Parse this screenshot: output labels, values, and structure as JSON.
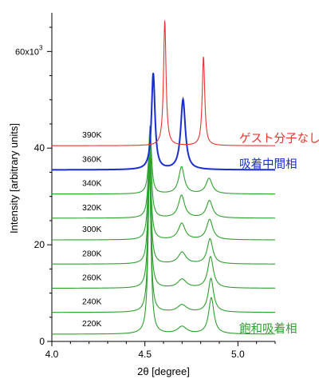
{
  "chart_data": {
    "type": "line",
    "xlabel": "2θ [degree]",
    "ylabel": "Intensity [arbitrary units]",
    "xlim": [
      4.0,
      5.2
    ],
    "ylim": [
      0,
      68000
    ],
    "x_ticks": [
      {
        "value": 4.0,
        "label": "4.0"
      },
      {
        "value": 4.5,
        "label": "4.5"
      },
      {
        "value": 5.0,
        "label": "5.0"
      }
    ],
    "y_ticks": [
      {
        "value": 0,
        "label": "0"
      },
      {
        "value": 20000,
        "label": "20"
      },
      {
        "value": 40000,
        "label": "40"
      }
    ],
    "y_top_tick": {
      "value": 60000,
      "label_base": "60x10",
      "label_exp": "3"
    },
    "grid": false,
    "colors": {
      "green": "#2ca02c",
      "blue": "#1a2fd0",
      "red": "#e8332c"
    },
    "series": [
      {
        "name": "220K",
        "color": "#2ca02c",
        "baseline": 1500,
        "peaks": [
          [
            4.525,
            35000,
            0.009
          ],
          [
            4.7,
            1500,
            0.03
          ],
          [
            4.857,
            7500,
            0.017
          ]
        ]
      },
      {
        "name": "240K",
        "color": "#2ca02c",
        "baseline": 6000,
        "peaks": [
          [
            4.525,
            30000,
            0.009
          ],
          [
            4.7,
            1500,
            0.03
          ],
          [
            4.855,
            7000,
            0.017
          ]
        ]
      },
      {
        "name": "260K",
        "color": "#2ca02c",
        "baseline": 11000,
        "peaks": [
          [
            4.525,
            27000,
            0.009
          ],
          [
            4.7,
            1800,
            0.028
          ],
          [
            4.853,
            6500,
            0.018
          ]
        ]
      },
      {
        "name": "280K",
        "color": "#2ca02c",
        "baseline": 16000,
        "peaks": [
          [
            4.525,
            23000,
            0.009
          ],
          [
            4.7,
            2400,
            0.025
          ],
          [
            4.85,
            5200,
            0.018
          ]
        ]
      },
      {
        "name": "300K",
        "color": "#2ca02c",
        "baseline": 21000,
        "peaks": [
          [
            4.525,
            20000,
            0.009
          ],
          [
            4.698,
            3400,
            0.022
          ],
          [
            4.848,
            4200,
            0.02
          ]
        ]
      },
      {
        "name": "320K",
        "color": "#2ca02c",
        "baseline": 25500,
        "peaks": [
          [
            4.527,
            18000,
            0.009
          ],
          [
            4.697,
            4700,
            0.02
          ],
          [
            4.847,
            3600,
            0.02
          ]
        ]
      },
      {
        "name": "340K",
        "color": "#2ca02c",
        "baseline": 30500,
        "peaks": [
          [
            4.528,
            14000,
            0.009
          ],
          [
            4.697,
            5600,
            0.018
          ],
          [
            4.845,
            3200,
            0.02
          ]
        ]
      },
      {
        "name": "360K",
        "color": "#1a2fd0",
        "baseline": 35500,
        "peaks": [
          [
            4.545,
            20000,
            0.011
          ],
          [
            4.705,
            14500,
            0.015
          ]
        ]
      },
      {
        "name": "390K",
        "color": "#e8332c",
        "baseline": 40500,
        "peaks": [
          [
            4.607,
            26000,
            0.008
          ],
          [
            4.815,
            18500,
            0.008
          ]
        ]
      }
    ],
    "annotations": [
      {
        "text": "ゲスト分子なし",
        "color": "#e8332c"
      },
      {
        "text": "吸着中間相",
        "color": "#1a2fd0"
      },
      {
        "text": "飽和吸着相",
        "color": "#2ca02c"
      }
    ]
  }
}
